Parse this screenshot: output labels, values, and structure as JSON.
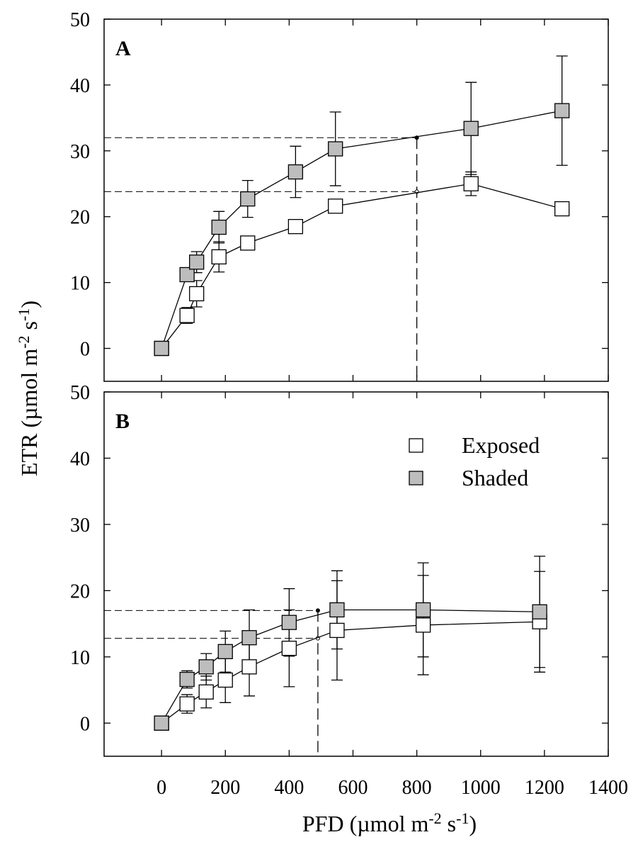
{
  "chart_data": {
    "type": "scatter",
    "ylabel": "ETR (µmol m-2 s-1)",
    "xlabel": "PFD (µmol m-2 s-1)",
    "xlim": [
      -180,
      1400
    ],
    "x_ticks": [
      0,
      200,
      400,
      600,
      800,
      1000,
      1200,
      1400
    ],
    "legend": [
      {
        "name": "Exposed",
        "fill": "#ffffff"
      },
      {
        "name": "Shaded",
        "fill": "#bdbdbd"
      }
    ],
    "panels": [
      {
        "label": "A",
        "ylim": [
          -5,
          50
        ],
        "y_ticks": [
          0,
          10,
          20,
          30,
          40,
          50
        ],
        "series": [
          {
            "name": "Exposed",
            "fill": "#ffffff",
            "points": [
              {
                "x": 0,
                "y": 0
              },
              {
                "x": 80,
                "y": 5.0,
                "err": 1.2
              },
              {
                "x": 110,
                "y": 8.3,
                "err": 2.0
              },
              {
                "x": 180,
                "y": 13.9,
                "err": 2.3
              },
              {
                "x": 270,
                "y": 16.0
              },
              {
                "x": 420,
                "y": 18.5
              },
              {
                "x": 545,
                "y": 21.6
              },
              {
                "x": 970,
                "y": 25.0,
                "err": 1.8
              },
              {
                "x": 1255,
                "y": 21.2
              }
            ]
          },
          {
            "name": "Shaded",
            "fill": "#bdbdbd",
            "points": [
              {
                "x": 0,
                "y": 0
              },
              {
                "x": 80,
                "y": 11.2
              },
              {
                "x": 110,
                "y": 13.1,
                "err": 1.6
              },
              {
                "x": 180,
                "y": 18.4,
                "err": 2.4
              },
              {
                "x": 270,
                "y": 22.7,
                "err": 2.8
              },
              {
                "x": 420,
                "y": 26.8,
                "err": 3.9
              },
              {
                "x": 545,
                "y": 30.3,
                "err": 5.6
              },
              {
                "x": 970,
                "y": 33.4,
                "err": 7.0
              },
              {
                "x": 1255,
                "y": 36.1,
                "err": 8.3
              }
            ]
          }
        ],
        "reference": {
          "x": 800,
          "y_shaded": 32.0,
          "y_exposed": 23.8
        }
      },
      {
        "label": "B",
        "ylim": [
          -5,
          50
        ],
        "y_ticks": [
          0,
          10,
          20,
          30,
          40,
          50
        ],
        "series": [
          {
            "name": "Exposed",
            "fill": "#ffffff",
            "points": [
              {
                "x": 0,
                "y": 0
              },
              {
                "x": 80,
                "y": 2.9,
                "err": 1.4
              },
              {
                "x": 140,
                "y": 4.7,
                "err": 2.4
              },
              {
                "x": 200,
                "y": 6.5,
                "err": 3.4
              },
              {
                "x": 275,
                "y": 8.5,
                "err": 4.4
              },
              {
                "x": 400,
                "y": 11.3,
                "err": 5.8
              },
              {
                "x": 550,
                "y": 14.0,
                "err": 7.5
              },
              {
                "x": 820,
                "y": 14.8,
                "err": 7.5
              },
              {
                "x": 1185,
                "y": 15.3,
                "err": 7.6
              }
            ]
          },
          {
            "name": "Shaded",
            "fill": "#bdbdbd",
            "points": [
              {
                "x": 0,
                "y": 0
              },
              {
                "x": 80,
                "y": 6.6,
                "err": 1.3
              },
              {
                "x": 140,
                "y": 8.5,
                "err": 2.0
              },
              {
                "x": 200,
                "y": 10.8,
                "err": 3.1
              },
              {
                "x": 275,
                "y": 12.9,
                "err": 4.2
              },
              {
                "x": 400,
                "y": 15.2,
                "err": 5.1
              },
              {
                "x": 550,
                "y": 17.1,
                "err": 5.9
              },
              {
                "x": 820,
                "y": 17.1,
                "err": 7.1
              },
              {
                "x": 1185,
                "y": 16.8,
                "err": 8.4
              }
            ]
          }
        ],
        "reference": {
          "x": 490,
          "y_shaded": 17.0,
          "y_exposed": 12.8
        }
      }
    ]
  }
}
